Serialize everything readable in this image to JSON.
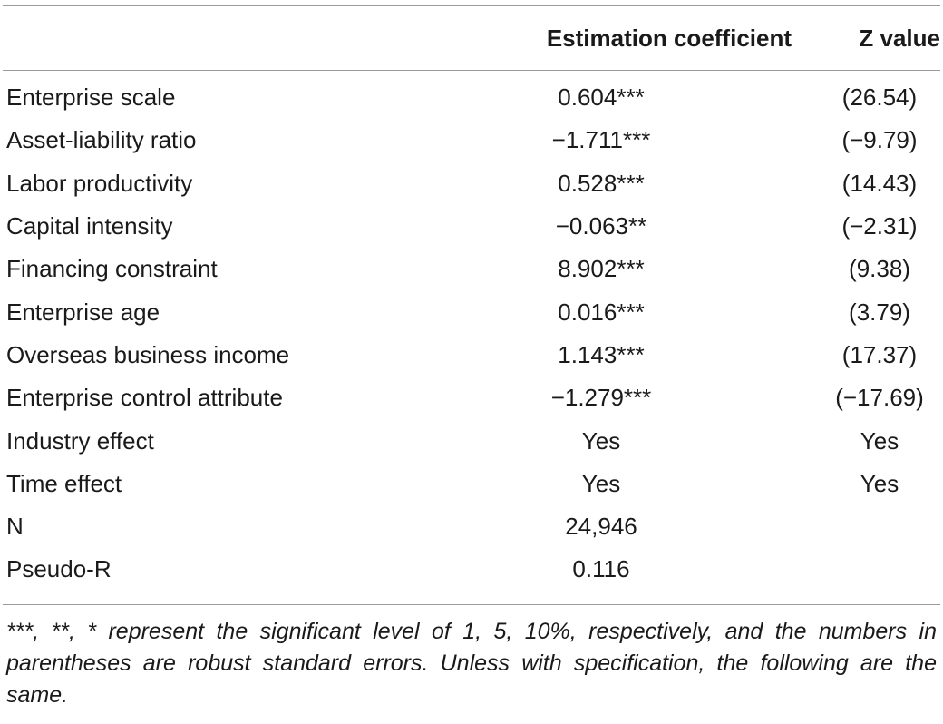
{
  "table": {
    "headers": {
      "variable": "",
      "coefficient": "Estimation coefficient",
      "z_value": "Z value"
    },
    "rows": [
      {
        "variable": "Enterprise scale",
        "coefficient": "0.604***",
        "z_value": "(26.54)"
      },
      {
        "variable": "Asset-liability ratio",
        "coefficient": "−1.711***",
        "z_value": "(−9.79)"
      },
      {
        "variable": "Labor productivity",
        "coefficient": "0.528***",
        "z_value": "(14.43)"
      },
      {
        "variable": "Capital intensity",
        "coefficient": "−0.063**",
        "z_value": "(−2.31)"
      },
      {
        "variable": "Financing constraint",
        "coefficient": "8.902***",
        "z_value": "(9.38)"
      },
      {
        "variable": "Enterprise age",
        "coefficient": "0.016***",
        "z_value": "(3.79)"
      },
      {
        "variable": "Overseas business income",
        "coefficient": "1.143***",
        "z_value": "(17.37)"
      },
      {
        "variable": "Enterprise control attribute",
        "coefficient": "−1.279***",
        "z_value": "(−17.69)"
      },
      {
        "variable": "Industry effect",
        "coefficient": "Yes",
        "z_value": "Yes"
      },
      {
        "variable": "Time effect",
        "coefficient": "Yes",
        "z_value": "Yes"
      },
      {
        "variable": "N",
        "coefficient": "24,946",
        "z_value": ""
      },
      {
        "variable": "Pseudo-R",
        "coefficient": "0.116",
        "z_value": ""
      }
    ]
  },
  "footnote": "***, **, * represent the significant level of 1, 5, 10%, respectively, and the numbers in parentheses are robust standard errors. Unless with specification, the following are the same."
}
